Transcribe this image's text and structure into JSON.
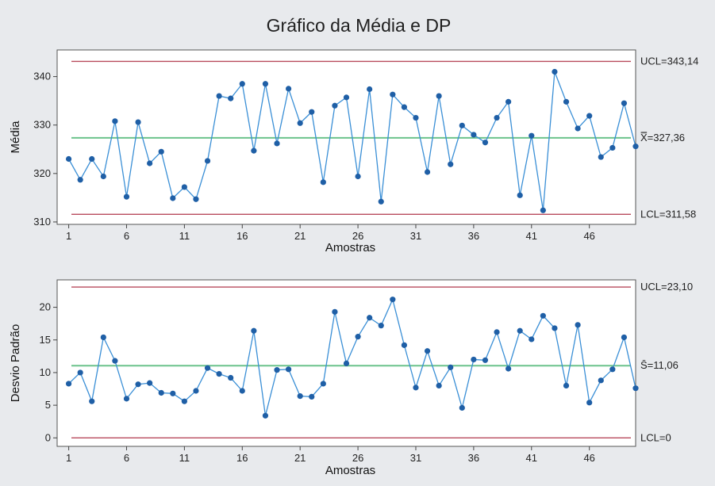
{
  "title": "Gráfico da Média e DP",
  "colors": {
    "background": "#e8eaed",
    "plot_bg": "#ffffff",
    "series": "#3a8fd6",
    "marker": "#1f5fa6",
    "limit_line": "#b84a5c",
    "center_line": "#6cc38c"
  },
  "chart_data": [
    {
      "type": "line",
      "name": "mean-chart",
      "xlabel": "Amostras",
      "ylabel": "Média",
      "xlim": [
        0,
        50
      ],
      "ylim": [
        309.5,
        345.5
      ],
      "xticks": [
        1,
        6,
        11,
        16,
        21,
        26,
        31,
        36,
        41,
        46
      ],
      "yticks": [
        310,
        320,
        330,
        340
      ],
      "x": [
        1,
        2,
        3,
        4,
        5,
        6,
        7,
        8,
        9,
        10,
        11,
        12,
        13,
        14,
        15,
        16,
        17,
        18,
        19,
        20,
        21,
        22,
        23,
        24,
        25,
        26,
        27,
        28,
        29,
        30,
        31,
        32,
        33,
        34,
        35,
        36,
        37,
        38,
        39,
        40,
        41,
        42,
        43,
        44,
        45,
        46,
        47,
        48,
        49,
        50
      ],
      "values": [
        323.0,
        318.7,
        323.0,
        319.4,
        330.8,
        315.2,
        330.6,
        322.1,
        324.5,
        314.9,
        317.2,
        314.7,
        322.6,
        336.0,
        335.5,
        338.5,
        324.7,
        338.5,
        326.2,
        337.5,
        330.4,
        332.7,
        318.2,
        334.0,
        335.7,
        319.4,
        337.4,
        314.2,
        336.3,
        333.7,
        331.5,
        320.3,
        336.0,
        321.9,
        329.9,
        328.0,
        326.4,
        331.5,
        334.8,
        315.5,
        327.8,
        312.4,
        341.0,
        334.8,
        329.3,
        331.9,
        323.4,
        325.3,
        334.5,
        325.6
      ],
      "ucl": 343.14,
      "center": 327.36,
      "lcl": 311.58,
      "ucl_label": "UCL=343,14",
      "center_label": "X̿=327,36",
      "lcl_label": "LCL=311,58"
    },
    {
      "type": "line",
      "name": "stdev-chart",
      "xlabel": "Amostras",
      "ylabel": "Desvio Padrão",
      "xlim": [
        0,
        50
      ],
      "ylim": [
        -1.3,
        24.2
      ],
      "xticks": [
        1,
        6,
        11,
        16,
        21,
        26,
        31,
        36,
        41,
        46
      ],
      "yticks": [
        0,
        5,
        10,
        15,
        20
      ],
      "x": [
        1,
        2,
        3,
        4,
        5,
        6,
        7,
        8,
        9,
        10,
        11,
        12,
        13,
        14,
        15,
        16,
        17,
        18,
        19,
        20,
        21,
        22,
        23,
        24,
        25,
        26,
        27,
        28,
        29,
        30,
        31,
        32,
        33,
        34,
        35,
        36,
        37,
        38,
        39,
        40,
        41,
        42,
        43,
        44,
        45,
        46,
        47,
        48,
        49,
        50
      ],
      "values": [
        8.3,
        10.0,
        5.6,
        15.4,
        11.8,
        6.0,
        8.2,
        8.4,
        6.9,
        6.8,
        5.6,
        7.2,
        10.7,
        9.8,
        9.2,
        7.2,
        16.4,
        3.4,
        10.4,
        10.5,
        6.4,
        6.3,
        8.3,
        19.3,
        11.4,
        15.5,
        18.4,
        17.2,
        21.2,
        14.2,
        7.7,
        13.3,
        8.0,
        10.8,
        4.6,
        12.0,
        11.9,
        16.2,
        10.6,
        16.4,
        15.1,
        18.7,
        16.8,
        8.0,
        17.3,
        5.4,
        8.8,
        10.5,
        15.4,
        7.6
      ],
      "ucl": 23.1,
      "center": 11.06,
      "lcl": 0,
      "ucl_label": "UCL=23,10",
      "center_label": "S̄=11,06",
      "lcl_label": "LCL=0"
    }
  ]
}
